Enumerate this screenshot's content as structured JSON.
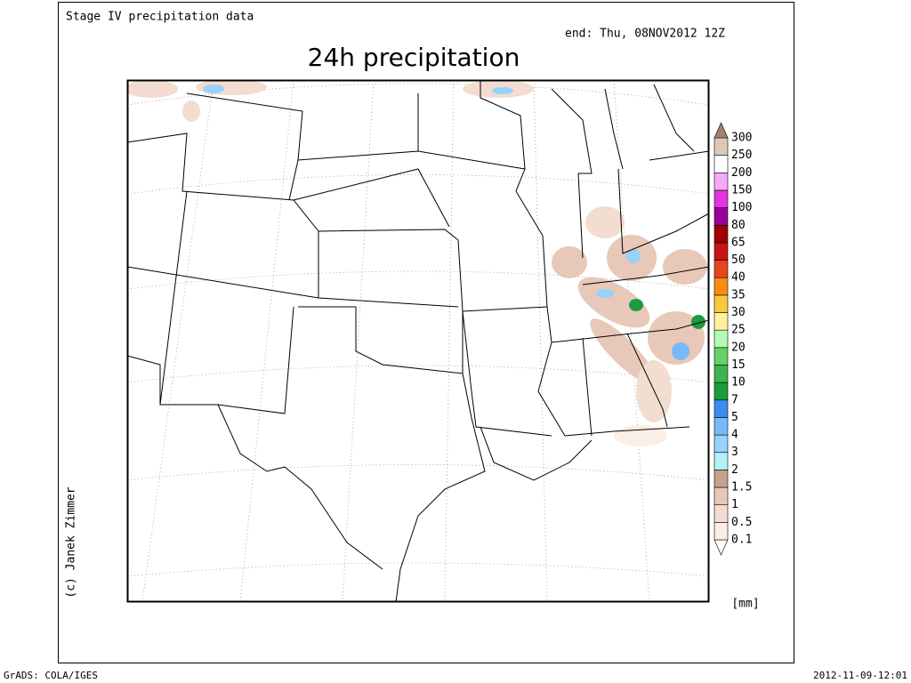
{
  "header": {
    "dataset": "Stage IV precipitation data",
    "valid_time": "end: Thu, 08NOV2012 12Z",
    "title": "24h precipitation",
    "copyright": "(c) Janek Zimmer"
  },
  "colorbar": {
    "unit": "[mm]",
    "labels": [
      "0.1",
      "0.5",
      "1",
      "1.5",
      "2",
      "3",
      "4",
      "5",
      "7",
      "10",
      "15",
      "20",
      "25",
      "30",
      "35",
      "40",
      "50",
      "65",
      "80",
      "100",
      "150",
      "200",
      "250",
      "300"
    ],
    "colors": [
      "#ffffff",
      "#fbeee6",
      "#f3dcd0",
      "#e8c8b8",
      "#c8a090",
      "#b4f0fa",
      "#96d2fa",
      "#78b9fa",
      "#3c8cf0",
      "#1e9b3c",
      "#3cb450",
      "#64d264",
      "#b4fab4",
      "#fff0a0",
      "#fac83c",
      "#fa8c14",
      "#e6461e",
      "#c81414",
      "#a00000",
      "#9b009b",
      "#e632e6",
      "#f5aaf5",
      "#ffffff",
      "#dcc8b4",
      "#a0826e"
    ]
  },
  "footer": {
    "software": "GrADS: COLA/IGES",
    "timestamp": "2012-11-09-12:01"
  }
}
